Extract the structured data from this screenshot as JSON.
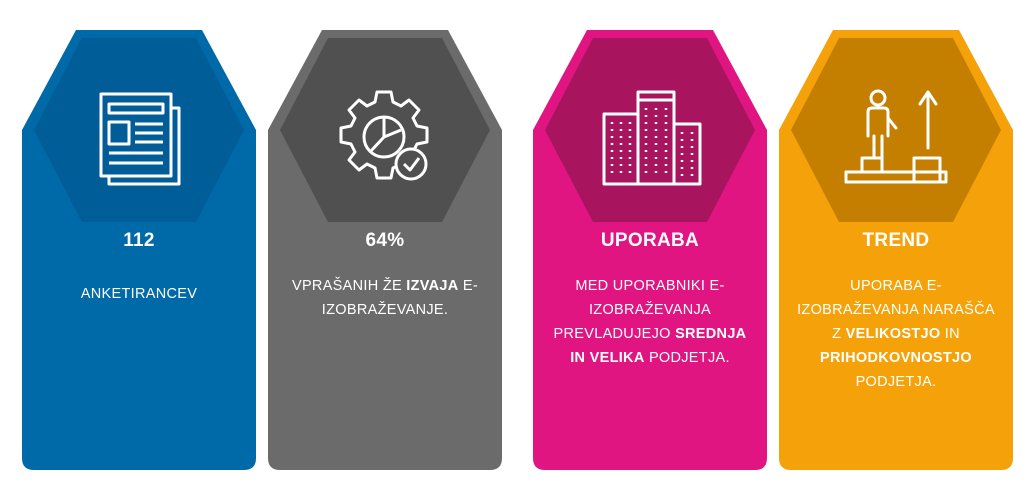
{
  "cards": [
    {
      "icon": "newspaper-icon",
      "title": "112",
      "body": [
        "ANKETIRANCEV"
      ],
      "colors": {
        "hex": "#005d98",
        "card": "#0069a8"
      }
    },
    {
      "icon": "gear-check-icon",
      "title": "64%",
      "body_plain_1": "VPRAŠANIH ŽE ",
      "body_bold_1": "IZVAJA",
      "body_plain_2": " E-IZOBRAŽEVANJE.",
      "colors": {
        "hex": "#505050",
        "card": "#6b6b6b"
      }
    },
    {
      "icon": "buildings-icon",
      "title": "UPORABA",
      "body_plain_1": "MED UPORABNIKI E-IZOBRAŽEVANJA PREVLADUJEJO ",
      "body_bold_1": "SREDNJA IN VELIKA",
      "body_plain_2": " PODJETJA.",
      "colors": {
        "hex": "#a8145e",
        "card": "#e01582"
      }
    },
    {
      "icon": "growth-stairs-icon",
      "title": "TREND",
      "body_plain_1": "UPORABA E-IZOBRAŽEVANJA NARAŠČA Z ",
      "body_bold_1": "VELIKOSTJO",
      "body_plain_2": " IN ",
      "body_bold_2": "PRIHODKOVNOSTJO",
      "body_plain_3": " PODJETJA.",
      "colors": {
        "hex": "#c57f00",
        "card": "#f5a20a"
      }
    }
  ]
}
